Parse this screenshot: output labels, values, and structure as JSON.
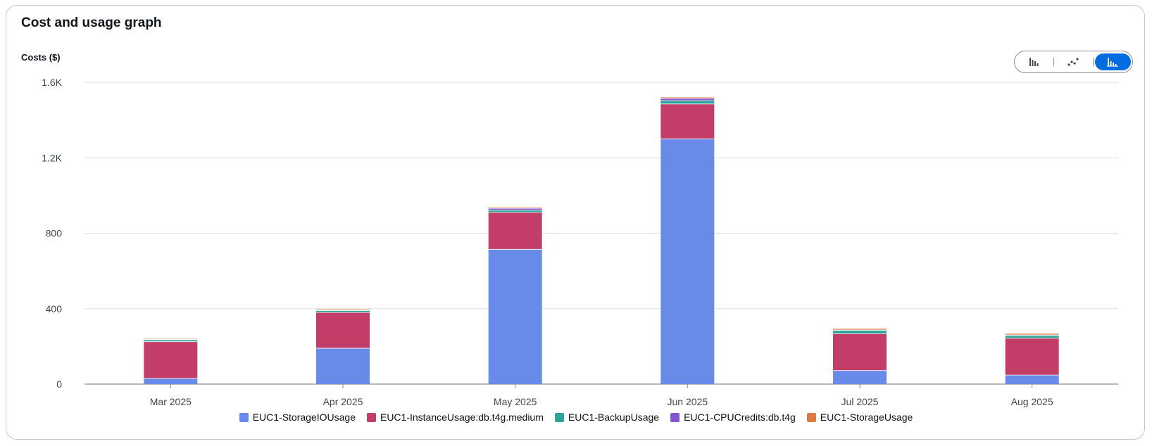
{
  "card": {
    "title": "Cost and usage graph"
  },
  "toolbar": {
    "buttons": [
      {
        "icon": "bar-chart-icon",
        "active": false
      },
      {
        "icon": "line-chart-icon",
        "active": false
      },
      {
        "icon": "stacked-bar-chart-icon",
        "active": true
      }
    ]
  },
  "chart_data": {
    "type": "bar",
    "stacked": true,
    "ylabel": "Costs ($)",
    "ylim": [
      0,
      1600
    ],
    "yticks": [
      {
        "value": 0,
        "label": "0"
      },
      {
        "value": 400,
        "label": "400"
      },
      {
        "value": 800,
        "label": "800"
      },
      {
        "value": 1200,
        "label": "1.2K"
      },
      {
        "value": 1600,
        "label": "1.6K"
      }
    ],
    "grid": true,
    "legend_position": "bottom",
    "categories": [
      "Mar 2025",
      "Apr 2025",
      "May 2025",
      "Jun 2025",
      "Jul 2025",
      "Aug 2025"
    ],
    "series": [
      {
        "name": "EUC1-StorageIOUsage",
        "color": "#688ae8",
        "values": [
          30,
          190,
          715,
          1300,
          72,
          48
        ]
      },
      {
        "name": "EUC1-InstanceUsage:db.t4g.medium",
        "color": "#c33d69",
        "values": [
          195,
          190,
          195,
          185,
          195,
          195
        ]
      },
      {
        "name": "EUC1-BackupUsage",
        "color": "#2ea597",
        "values": [
          10,
          10,
          12,
          18,
          18,
          15
        ]
      },
      {
        "name": "EUC1-CPUCredits:db.t4g",
        "color": "#8456ce",
        "values": [
          2,
          3,
          10,
          12,
          2,
          3
        ]
      },
      {
        "name": "EUC1-StorageUsage",
        "color": "#e07941",
        "values": [
          3,
          4,
          4,
          5,
          6,
          6
        ]
      }
    ]
  }
}
